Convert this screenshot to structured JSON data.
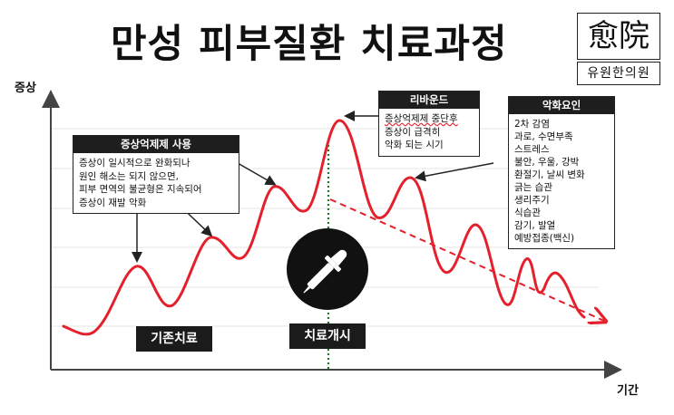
{
  "title": "만성 피부질환 치료과정",
  "logo": {
    "hanja": "愈院",
    "name": "유원한의원"
  },
  "axis": {
    "y_label": "증상",
    "x_label": "기간"
  },
  "callouts": {
    "symptom": {
      "heading": "증상억제제 사용",
      "lines": [
        "증상이 일시적으로 완화되나",
        "원인 해소는 되지 않으면,",
        "피부 면역의 불균형은 지속되어",
        "증상이 재발 악화"
      ]
    },
    "rebound": {
      "heading": "리바운드",
      "lines": [
        "증상억제제 중단후",
        "증상이 급격히",
        "악화 되는 시기"
      ]
    },
    "factors": {
      "heading": "악화요인",
      "lines": [
        "2차 감염",
        "과로, 수면부족",
        "스트레스",
        "불안, 우울, 강박",
        "환절기, 날씨 변화",
        "긁는 습관",
        "생리주기",
        "식습관",
        "감기, 발열",
        "예방접종(백신)"
      ]
    }
  },
  "labels": {
    "existing": "기존치료",
    "start": "치료개시"
  },
  "colors": {
    "curve": "#e4202c",
    "trend": "#e4202c",
    "marker": "#1f7a2e",
    "dark": "#1b1b1b"
  },
  "icons": {
    "treatment": "dropper-icon"
  }
}
